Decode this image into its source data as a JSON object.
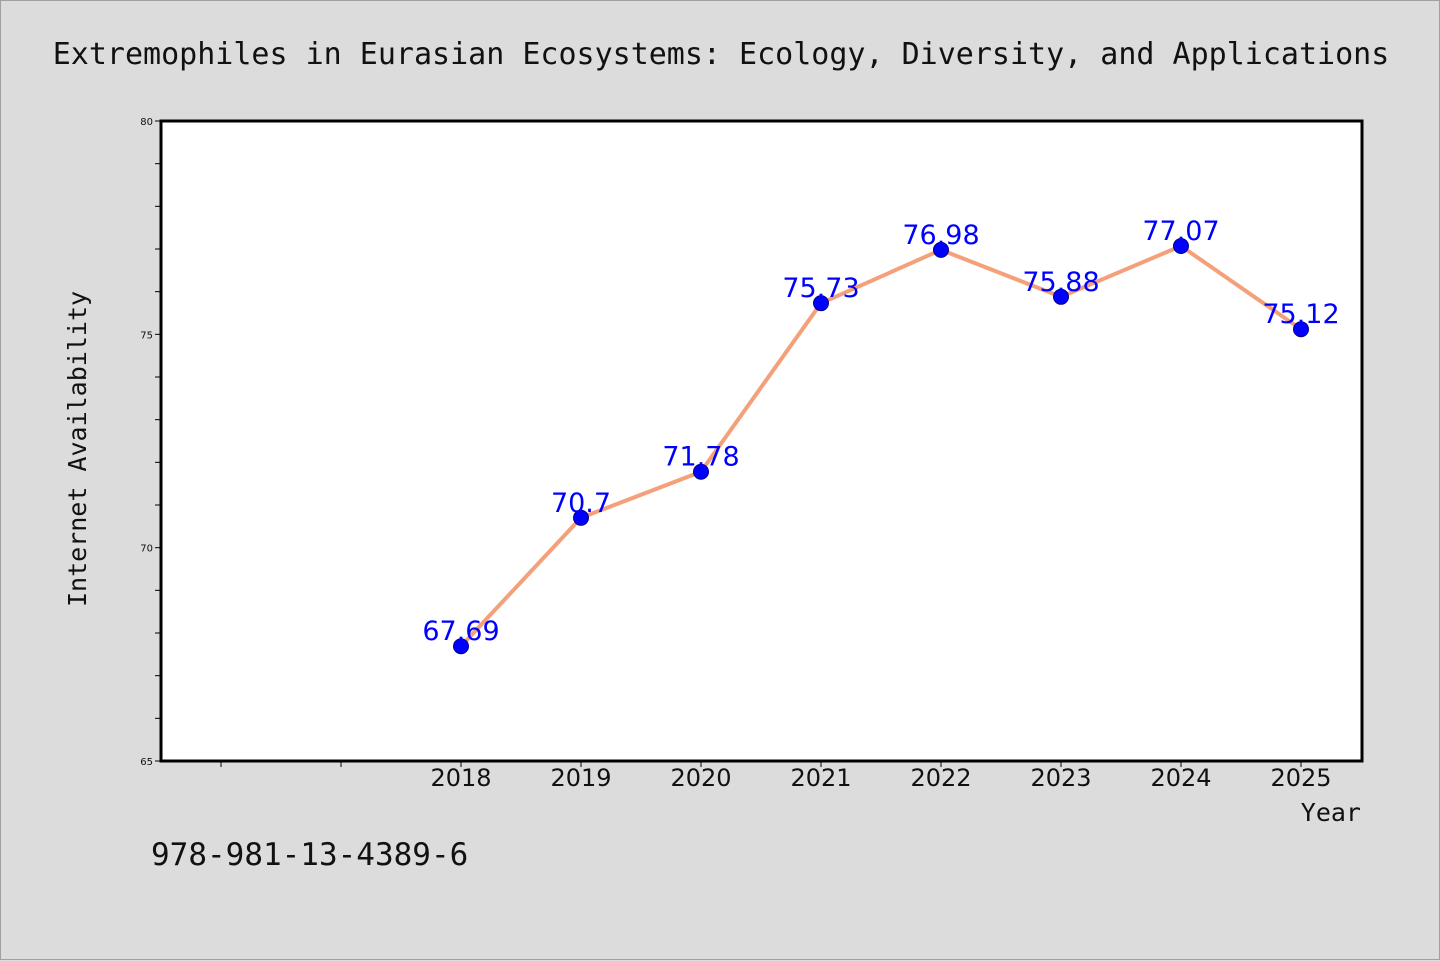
{
  "chart_data": {
    "type": "line",
    "title": "Extremophiles in Eurasian Ecosystems: Ecology, Diversity, and Applications",
    "xlabel": "Year",
    "ylabel": "Internet Availability",
    "x": [
      "2018",
      "2019",
      "2020",
      "2021",
      "2022",
      "2023",
      "2024",
      "2025"
    ],
    "series": [
      {
        "values": [
          67.69,
          70.7,
          71.78,
          75.73,
          76.98,
          75.88,
          77.07,
          75.12
        ],
        "labels": [
          "67.69",
          "70.7",
          "71.78",
          "75.73",
          "76.98",
          "75.88",
          "77.07",
          "75.12"
        ]
      }
    ],
    "ylim": [
      65,
      80
    ],
    "y_ticks": [
      "65",
      "70",
      "75",
      "80"
    ],
    "x_slots_before_data": 2,
    "grid": false,
    "legend": "none",
    "colors": {
      "line": "#f4a07a",
      "marker": "#0000ff",
      "marker_edge": "#00008b",
      "data_label": "#0000ff",
      "background": "#dcdcdc",
      "plot_background": "#ffffff"
    }
  },
  "footer": {
    "isbn": "978-981-13-4389-6"
  }
}
